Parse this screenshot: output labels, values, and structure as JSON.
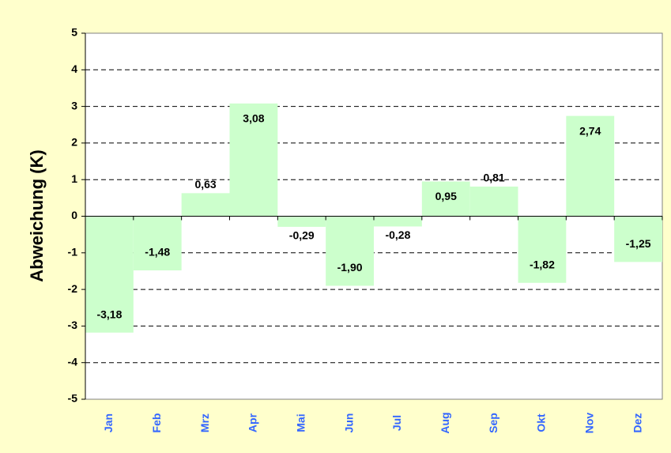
{
  "chart_data": {
    "type": "bar",
    "y_label": "Abweichung (K)",
    "categories": [
      "Jan",
      "Feb",
      "Mrz",
      "Apr",
      "Mai",
      "Jun",
      "Jul",
      "Aug",
      "Sep",
      "Okt",
      "Nov",
      "Dez"
    ],
    "values": [
      -3.18,
      -1.48,
      0.63,
      3.08,
      -0.29,
      -1.9,
      -0.28,
      0.95,
      0.81,
      -1.82,
      2.74,
      -1.25
    ],
    "value_labels": [
      "-3,18",
      "-1,48",
      "0,63",
      "3,08",
      "-0,29",
      "-1,90",
      "-0,28",
      "0,95",
      "0,81",
      "-1,82",
      "2,74",
      "-1,25"
    ],
    "color": "#ccffcc",
    "ylim": [
      -5,
      5
    ],
    "yticks": [
      -5,
      -4,
      -3,
      -2,
      -1,
      0,
      1,
      2,
      3,
      4,
      5
    ],
    "grid": true
  }
}
